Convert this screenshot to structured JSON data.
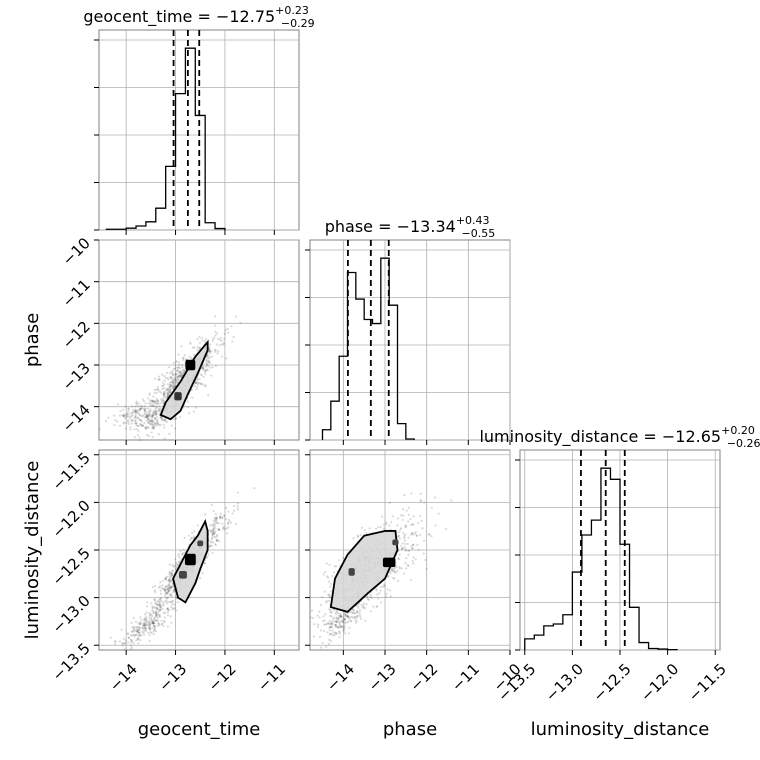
{
  "chart_data": {
    "type": "corner",
    "parameters": [
      "geocent_time",
      "phase",
      "luminosity_distance"
    ],
    "axes": {
      "geocent_time": {
        "range": [
          -14.55,
          -10.5
        ],
        "ticks": [
          -14,
          -13,
          -12,
          -11
        ],
        "tick_labels": [
          "−14",
          "−13",
          "−12",
          "−11"
        ]
      },
      "phase": {
        "range": [
          -14.8,
          -10.0
        ],
        "ticks": [
          -14,
          -13,
          -12,
          -11,
          -10
        ],
        "tick_labels": [
          "−14",
          "−13",
          "−12",
          "−11",
          "−10"
        ],
        "y_ticks": [
          -14,
          -13,
          -12,
          -11,
          -10
        ],
        "y_tick_labels": [
          "−14",
          "−13",
          "−12",
          "−11",
          "−10"
        ]
      },
      "luminosity_distance": {
        "range": [
          -13.55,
          -11.45
        ],
        "ticks": [
          -13.5,
          -13.0,
          -12.5,
          -12.0,
          -11.5
        ],
        "tick_labels": [
          "−13.5",
          "−13.0",
          "−12.5",
          "−12.0",
          "−11.5"
        ]
      }
    },
    "xlabels": [
      "geocent_time",
      "phase",
      "luminosity_distance"
    ],
    "ylabels": [
      "",
      "phase",
      "luminosity_distance"
    ],
    "diagonal": [
      {
        "parameter": "geocent_time",
        "title_base": "geocent_time = −12.75",
        "title_plus": "+0.23",
        "title_minus": "−0.29",
        "median": -12.75,
        "q_low": -13.04,
        "q_high": -12.52,
        "bin_edges": [
          -14.4,
          -14.2,
          -14.0,
          -13.8,
          -13.6,
          -13.4,
          -13.2,
          -13.0,
          -12.8,
          -12.6,
          -12.4,
          -12.2,
          -12.0
        ],
        "counts": [
          0.4,
          0.4,
          1,
          2.2,
          4.5,
          12,
          35,
          75,
          100,
          63,
          4,
          0.8
        ]
      },
      {
        "parameter": "phase",
        "title_base": "phase = −13.34",
        "title_plus": "+0.43",
        "title_minus": "−0.55",
        "median": -13.34,
        "q_low": -13.89,
        "q_high": -12.91,
        "bin_edges": [
          -14.5,
          -14.3,
          -14.1,
          -13.9,
          -13.7,
          -13.5,
          -13.3,
          -13.1,
          -12.9,
          -12.7,
          -12.5,
          -12.3
        ],
        "counts": [
          5,
          19,
          41,
          82,
          69,
          59,
          57,
          89,
          66,
          8,
          0.5
        ]
      },
      {
        "parameter": "luminosity_distance",
        "title_base": "luminosity_distance = −12.65",
        "title_plus": "+0.20",
        "title_minus": "−0.26",
        "median": -12.65,
        "q_low": -12.91,
        "q_high": -12.45,
        "bin_edges": [
          -13.5,
          -13.4,
          -13.3,
          -13.2,
          -13.1,
          -13.0,
          -12.9,
          -12.8,
          -12.7,
          -12.6,
          -12.5,
          -12.4,
          -12.3,
          -12.2,
          -12.1,
          -12.0,
          -11.9
        ],
        "counts": [
          6,
          8,
          13,
          14,
          19,
          42,
          62,
          70,
          98,
          92,
          57,
          23,
          4,
          0.8,
          0.5,
          0.2
        ]
      }
    ],
    "scatter": [
      {
        "x": "geocent_time",
        "y": "phase",
        "regions": [
          {
            "path": [
              [
                -13.3,
                -14.2
              ],
              [
                -13.2,
                -13.9
              ],
              [
                -12.9,
                -13.4
              ],
              [
                -12.75,
                -13.1
              ],
              [
                -12.6,
                -12.8
              ],
              [
                -12.35,
                -12.45
              ],
              [
                -12.35,
                -12.65
              ],
              [
                -12.55,
                -13.2
              ],
              [
                -12.75,
                -13.7
              ],
              [
                -12.9,
                -14.1
              ],
              [
                -13.1,
                -14.3
              ],
              [
                -13.3,
                -14.2
              ]
            ],
            "fill": "#d8d8d8"
          }
        ],
        "hotspots": [
          {
            "x": -12.7,
            "y": -13.0,
            "w": 0.2,
            "h": 0.25,
            "fill": "#000000"
          },
          {
            "x": -12.95,
            "y": -13.75,
            "w": 0.15,
            "h": 0.2,
            "fill": "#333333"
          }
        ],
        "clouds": [
          {
            "cx": -12.9,
            "cy": -13.45,
            "sx": 0.38,
            "sy": 0.55,
            "rho": 0.84,
            "n": 800
          },
          {
            "cx": -13.6,
            "cy": -14.2,
            "sx": 0.35,
            "sy": 0.18,
            "rho": 0.3,
            "n": 220
          }
        ]
      },
      {
        "x": "geocent_time",
        "y": "luminosity_distance",
        "regions": [
          {
            "path": [
              [
                -12.95,
                -13.0
              ],
              [
                -13.05,
                -12.8
              ],
              [
                -12.8,
                -12.55
              ],
              [
                -12.7,
                -12.45
              ],
              [
                -12.55,
                -12.35
              ],
              [
                -12.4,
                -12.2
              ],
              [
                -12.35,
                -12.3
              ],
              [
                -12.35,
                -12.5
              ],
              [
                -12.5,
                -12.7
              ],
              [
                -12.6,
                -12.85
              ],
              [
                -12.8,
                -13.05
              ],
              [
                -12.95,
                -13.0
              ]
            ],
            "fill": "#d8d8d8"
          }
        ],
        "hotspots": [
          {
            "x": -12.7,
            "y": -12.6,
            "w": 0.22,
            "h": 0.12,
            "fill": "#000000"
          },
          {
            "x": -12.85,
            "y": -12.76,
            "w": 0.16,
            "h": 0.08,
            "fill": "#444444"
          },
          {
            "x": -12.5,
            "y": -12.43,
            "w": 0.12,
            "h": 0.06,
            "fill": "#444444"
          }
        ],
        "clouds": [
          {
            "cx": -12.75,
            "cy": -12.65,
            "sx": 0.38,
            "sy": 0.26,
            "rho": 0.93,
            "n": 750
          },
          {
            "cx": -13.6,
            "cy": -13.3,
            "sx": 0.3,
            "sy": 0.1,
            "rho": 0.8,
            "n": 200
          }
        ]
      },
      {
        "x": "phase",
        "y": "luminosity_distance",
        "regions": [
          {
            "path": [
              [
                -14.3,
                -13.1
              ],
              [
                -14.2,
                -12.8
              ],
              [
                -13.9,
                -12.55
              ],
              [
                -13.5,
                -12.35
              ],
              [
                -13.0,
                -12.3
              ],
              [
                -12.75,
                -12.3
              ],
              [
                -12.7,
                -12.5
              ],
              [
                -13.0,
                -12.8
              ],
              [
                -13.4,
                -12.95
              ],
              [
                -13.9,
                -13.15
              ],
              [
                -14.3,
                -13.1
              ]
            ],
            "fill": "#d8d8d8"
          }
        ],
        "hotspots": [
          {
            "x": -12.9,
            "y": -12.63,
            "w": 0.3,
            "h": 0.1,
            "fill": "#000000"
          },
          {
            "x": -13.8,
            "y": -12.73,
            "w": 0.15,
            "h": 0.08,
            "fill": "#444444"
          },
          {
            "x": -12.75,
            "y": -12.42,
            "w": 0.15,
            "h": 0.06,
            "fill": "#444444"
          }
        ],
        "clouds": [
          {
            "cx": -13.34,
            "cy": -12.68,
            "sx": 0.6,
            "sy": 0.27,
            "rho": 0.72,
            "n": 800
          },
          {
            "cx": -14.0,
            "cy": -13.2,
            "sx": 0.25,
            "sy": 0.12,
            "rho": 0.7,
            "n": 200
          }
        ]
      }
    ]
  }
}
